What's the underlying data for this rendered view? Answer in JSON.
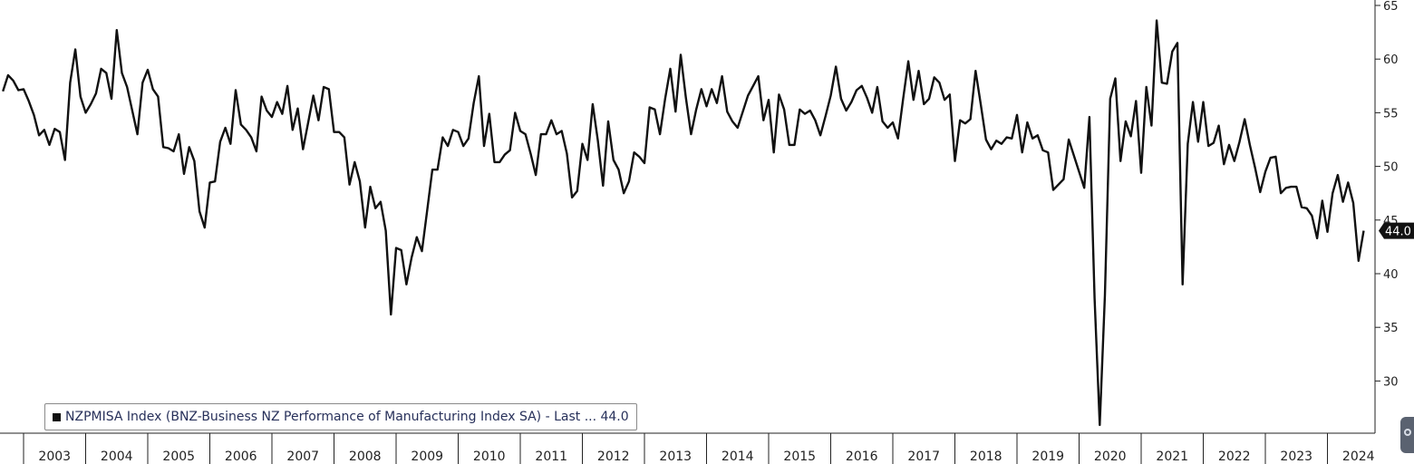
{
  "legend": {
    "text": "NZPMISA Index (BNZ-Business NZ Performance of Manufacturing Index SA) - Last ... 44.0"
  },
  "last_value_label": "44.0",
  "chart_data": {
    "type": "line",
    "title": "",
    "xlabel": "",
    "ylabel": "",
    "ylim": [
      25.5,
      65.5
    ],
    "yticks": [
      30,
      35,
      40,
      45,
      50,
      55,
      60,
      65
    ],
    "y_axis_side": "right",
    "grid": false,
    "legend_position": "bottom-left",
    "line_color": "#111111",
    "x_start": "2002-09",
    "x_tick_labels": [
      "2003",
      "2004",
      "2005",
      "2006",
      "2007",
      "2008",
      "2009",
      "2010",
      "2011",
      "2012",
      "2013",
      "2014",
      "2015",
      "2016",
      "2017",
      "2018",
      "2019",
      "2020",
      "2021",
      "2022",
      "2023",
      "2024"
    ],
    "series": [
      {
        "name": "NZPMISA Index (BNZ-Business NZ Performance of Manufacturing Index SA)",
        "last": 44.0,
        "values": [
          57.0,
          58.5,
          58.0,
          57.1,
          57.2,
          56.1,
          54.8,
          52.9,
          53.4,
          52.0,
          53.5,
          53.2,
          50.6,
          57.8,
          60.9,
          56.5,
          55.0,
          55.8,
          56.8,
          59.1,
          58.7,
          56.3,
          62.7,
          58.7,
          57.4,
          55.2,
          53.0,
          57.8,
          59.0,
          57.2,
          56.5,
          51.8,
          51.7,
          51.4,
          53.0,
          49.3,
          51.8,
          50.5,
          45.8,
          44.3,
          48.5,
          48.6,
          52.3,
          53.6,
          52.1,
          57.1,
          53.9,
          53.4,
          52.7,
          51.4,
          56.5,
          55.2,
          54.6,
          56.0,
          54.9,
          57.5,
          53.4,
          55.4,
          51.6,
          54.1,
          56.6,
          54.3,
          57.4,
          57.2,
          53.2,
          53.2,
          52.7,
          48.3,
          50.4,
          48.6,
          44.3,
          48.1,
          46.1,
          46.7,
          44.0,
          36.2,
          42.4,
          42.2,
          39.0,
          41.5,
          43.4,
          42.1,
          45.9,
          49.7,
          49.7,
          52.7,
          51.9,
          53.4,
          53.2,
          51.9,
          52.6,
          55.9,
          58.4,
          51.9,
          54.9,
          50.4,
          50.4,
          51.1,
          51.5,
          55.0,
          53.3,
          53.0,
          51.2,
          49.2,
          53.0,
          53.0,
          54.3,
          53.0,
          53.3,
          51.2,
          47.1,
          47.7,
          52.1,
          50.6,
          55.8,
          52.4,
          48.2,
          54.2,
          50.6,
          49.7,
          47.5,
          48.6,
          51.3,
          50.9,
          50.3,
          55.5,
          55.3,
          53.0,
          56.3,
          59.1,
          55.1,
          60.4,
          56.4,
          53.0,
          55.3,
          57.2,
          55.6,
          57.2,
          55.9,
          58.4,
          55.1,
          54.2,
          53.6,
          55.1,
          56.6,
          57.5,
          58.4,
          54.3,
          56.2,
          51.3,
          56.7,
          55.3,
          52.0,
          52.0,
          55.3,
          54.9,
          55.2,
          54.3,
          52.9,
          54.7,
          56.6,
          59.3,
          56.3,
          55.2,
          56.0,
          57.1,
          57.5,
          56.4,
          55.0,
          57.4,
          54.2,
          53.6,
          54.1,
          52.6,
          56.3,
          59.8,
          56.2,
          58.9,
          55.8,
          56.3,
          58.3,
          57.8,
          56.2,
          56.7,
          50.5,
          54.3,
          54.0,
          54.4,
          58.9,
          55.8,
          52.5,
          51.6,
          52.4,
          52.1,
          52.7,
          52.6,
          54.8,
          51.3,
          54.1,
          52.6,
          52.9,
          51.5,
          51.3,
          47.8,
          48.3,
          48.8,
          52.5,
          51.0,
          49.5,
          48.0,
          54.6,
          37.7,
          25.9,
          38.0,
          56.3,
          58.2,
          50.5,
          54.2,
          52.8,
          56.1,
          49.4,
          57.4,
          53.8,
          63.6,
          57.8,
          57.7,
          60.7,
          61.5,
          39.0,
          52.1,
          56.0,
          52.3,
          56.0,
          51.9,
          52.2,
          53.8,
          50.2,
          52.0,
          50.5,
          52.3,
          54.4,
          52.0,
          49.9,
          47.6,
          49.5,
          50.8,
          50.9,
          47.5,
          48.0,
          48.1,
          48.1,
          46.2,
          46.1,
          45.4,
          43.3,
          46.8,
          43.9,
          47.5,
          49.2,
          46.7,
          48.5,
          46.6,
          41.2,
          44.0
        ]
      }
    ]
  }
}
